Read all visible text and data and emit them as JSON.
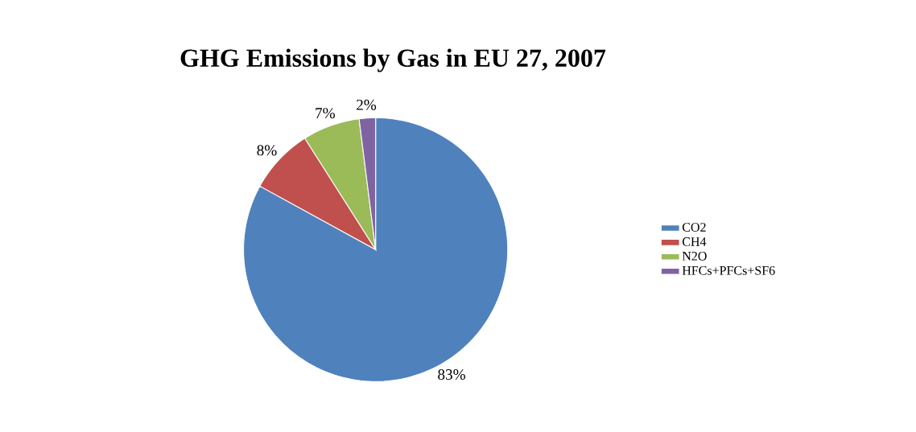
{
  "chart_data": {
    "type": "pie",
    "title": "GHG Emissions by Gas in EU 27, 2007",
    "categories": [
      "CO2",
      "CH4",
      "N2O",
      "HFCs+PFCs+SF6"
    ],
    "values": [
      83,
      8,
      7,
      2
    ],
    "value_labels": [
      "83%",
      "8%",
      "7%",
      "2%"
    ],
    "colors": [
      "#4f81bd",
      "#c0504d",
      "#9bbb59",
      "#8064a2"
    ],
    "legend": "right"
  }
}
